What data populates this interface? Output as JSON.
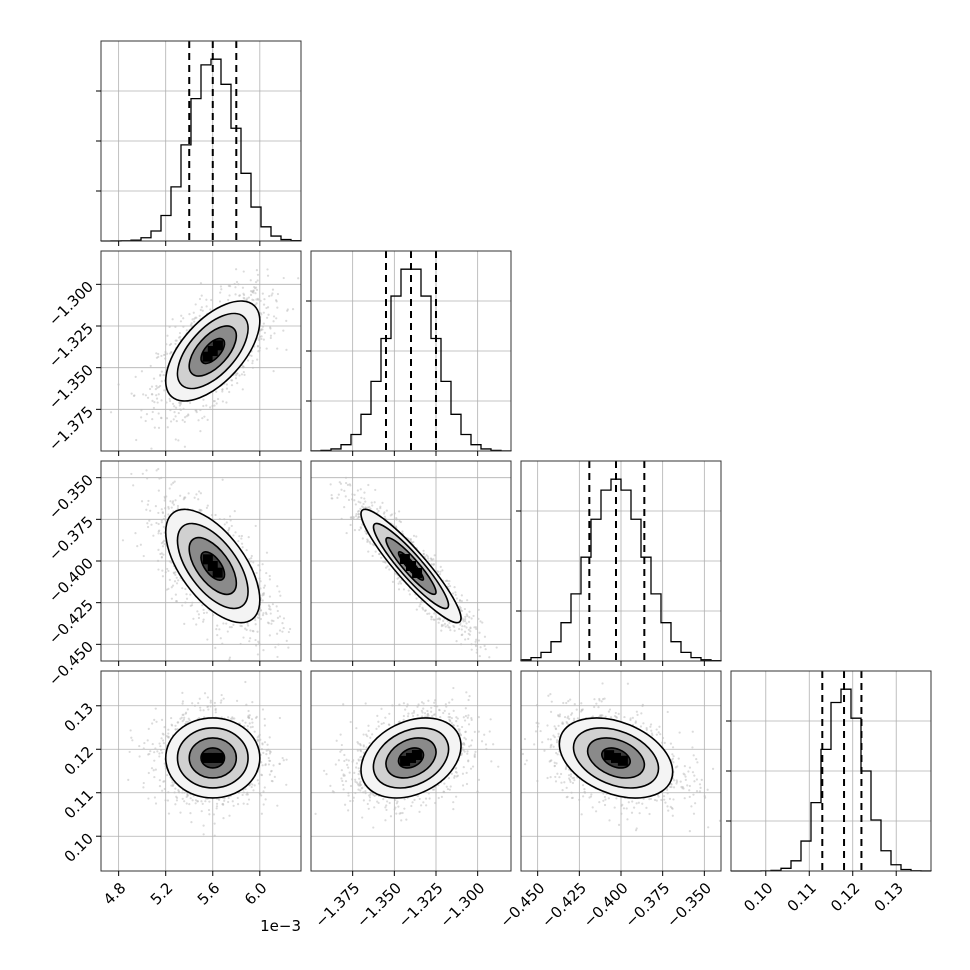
{
  "chart_data": {
    "type": "corner",
    "parameters": [
      {
        "range": [
          4.65,
          6.35
        ],
        "ticks": [
          4.8,
          5.2,
          5.6,
          6.0
        ],
        "tick_labels": [
          "4.8",
          "5.2",
          "5.6",
          "6.0"
        ],
        "offset_label": "1e−3",
        "quantiles": [
          5.4,
          5.6,
          5.8
        ],
        "mean": 5.6,
        "sd": 0.2
      },
      {
        "range": [
          -1.4,
          -1.28
        ],
        "ticks": [
          -1.375,
          -1.35,
          -1.325,
          -1.3
        ],
        "tick_labels": [
          "−1.375",
          "−1.350",
          "−1.325",
          "−1.300"
        ],
        "quantiles": [
          -1.355,
          -1.34,
          -1.325
        ],
        "mean": -1.34,
        "sd": 0.015
      },
      {
        "range": [
          -0.46,
          -0.34
        ],
        "ticks": [
          -0.45,
          -0.425,
          -0.4,
          -0.375,
          -0.35
        ],
        "tick_labels": [
          "−0.450",
          "−0.425",
          "−0.400",
          "−0.375",
          "−0.350"
        ],
        "quantiles": [
          -0.419,
          -0.403,
          -0.386
        ],
        "mean": -0.403,
        "sd": 0.017
      },
      {
        "range": [
          0.092,
          0.138
        ],
        "ticks": [
          0.1,
          0.11,
          0.12,
          0.13
        ],
        "tick_labels": [
          "0.10",
          "0.11",
          "0.12",
          "0.13"
        ],
        "quantiles": [
          0.113,
          0.118,
          0.122
        ],
        "mean": 0.118,
        "sd": 0.0046
      }
    ],
    "correlations": [
      {
        "pair": [
          0,
          1
        ],
        "rho": 0.6
      },
      {
        "pair": [
          0,
          2
        ],
        "rho": -0.6
      },
      {
        "pair": [
          1,
          2
        ],
        "rho": -0.92
      },
      {
        "pair": [
          0,
          3
        ],
        "rho": 0.0
      },
      {
        "pair": [
          1,
          3
        ],
        "rho": 0.3
      },
      {
        "pair": [
          2,
          3
        ],
        "rho": -0.35
      }
    ],
    "histogram_bins": 20,
    "contour_levels_sigma": [
      0.5,
      1.0,
      1.5,
      2.0
    ],
    "grid": true,
    "colors": {
      "line": "#000000",
      "scatter": "#bdbdbd",
      "grid": "#b0b0b0"
    }
  }
}
